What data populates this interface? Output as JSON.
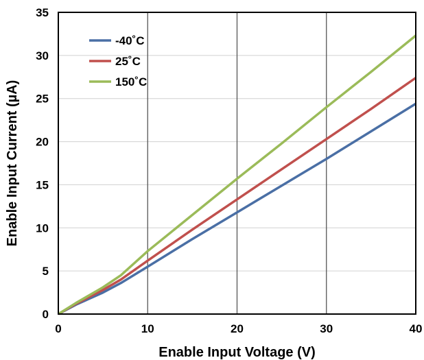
{
  "chart_data": {
    "type": "line",
    "xlabel": "Enable Input Voltage (V)",
    "ylabel": "Enable Input Current (µA)",
    "xlim": [
      0,
      40
    ],
    "ylim": [
      0,
      35
    ],
    "xticks": [
      "0",
      "10",
      "20",
      "30",
      "40"
    ],
    "yticks": [
      "0",
      "5",
      "10",
      "15",
      "20",
      "25",
      "30",
      "35"
    ],
    "grid": {
      "vertical": true,
      "horizontal": true
    },
    "legend_position": "top-left",
    "series": [
      {
        "name": "-40˚C",
        "color": "#4a6fa5",
        "points": [
          [
            0,
            0
          ],
          [
            2,
            1.1
          ],
          [
            5,
            2.5
          ],
          [
            7,
            3.6
          ],
          [
            10,
            5.5
          ],
          [
            15,
            8.7
          ],
          [
            20,
            11.8
          ],
          [
            25,
            14.9
          ],
          [
            30,
            18.0
          ],
          [
            35,
            21.2
          ],
          [
            40,
            24.4
          ]
        ]
      },
      {
        "name": "25˚C",
        "color": "#c0504d",
        "points": [
          [
            0,
            0
          ],
          [
            2,
            1.2
          ],
          [
            5,
            2.8
          ],
          [
            7,
            4.0
          ],
          [
            10,
            6.2
          ],
          [
            15,
            9.8
          ],
          [
            20,
            13.3
          ],
          [
            25,
            16.8
          ],
          [
            30,
            20.3
          ],
          [
            35,
            23.8
          ],
          [
            40,
            27.4
          ]
        ]
      },
      {
        "name": "150˚C",
        "color": "#9bbb59",
        "points": [
          [
            0,
            0
          ],
          [
            2,
            1.3
          ],
          [
            5,
            3.1
          ],
          [
            7,
            4.5
          ],
          [
            10,
            7.3
          ],
          [
            15,
            11.5
          ],
          [
            20,
            15.7
          ],
          [
            25,
            19.8
          ],
          [
            30,
            24.0
          ],
          [
            35,
            28.1
          ],
          [
            40,
            32.3
          ]
        ]
      }
    ]
  }
}
